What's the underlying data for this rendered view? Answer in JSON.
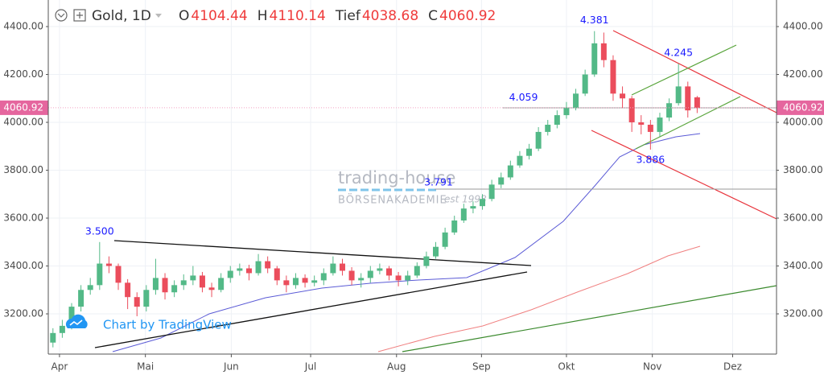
{
  "chart_data": {
    "type": "candlestick",
    "title": "Gold, 1D",
    "ohlc_labels": [
      "O",
      "H",
      "Tief",
      "C"
    ],
    "up_color": "#53b987",
    "down_color": "#eb4d5c",
    "categories": [
      null,
      null,
      null,
      null,
      null,
      null,
      null,
      null,
      null,
      null,
      null,
      null,
      null,
      null,
      null,
      null,
      null,
      null,
      null,
      null,
      null,
      null,
      null,
      null,
      null,
      null,
      null,
      null,
      null,
      null,
      null,
      null,
      null,
      null,
      null,
      null,
      null,
      null,
      null,
      null,
      null,
      null,
      null,
      null,
      null,
      null,
      null,
      null,
      null,
      null,
      null,
      null,
      null,
      null,
      null,
      null,
      null,
      null,
      null,
      null,
      null,
      null,
      null,
      null,
      null,
      null,
      null,
      null,
      null,
      null
    ],
    "open": [
      3080,
      3120,
      3150,
      3230,
      3300,
      3320,
      3410,
      3400,
      3330,
      3270,
      3230,
      3300,
      3350,
      3290,
      3320,
      3340,
      3360,
      3310,
      3300,
      3350,
      3380,
      3390,
      3370,
      3420,
      3390,
      3340,
      3320,
      3350,
      3330,
      3340,
      3370,
      3410,
      3380,
      3340,
      3350,
      3380,
      3390,
      3360,
      3340,
      3360,
      3400,
      3440,
      3480,
      3540,
      3590,
      3640,
      3650,
      3680,
      3740,
      3770,
      3820,
      3860,
      3890,
      3960,
      3990,
      4030,
      4060,
      4120,
      4200,
      4330,
      4260,
      4120,
      4100,
      4000,
      3990,
      3960,
      4020,
      4080,
      4150,
      4104.44
    ],
    "high": [
      3140,
      3175,
      3245,
      3320,
      3350,
      3500,
      3440,
      3410,
      3345,
      3290,
      3320,
      3430,
      3370,
      3340,
      3365,
      3400,
      3375,
      3330,
      3370,
      3400,
      3410,
      3405,
      3450,
      3440,
      3400,
      3360,
      3370,
      3365,
      3360,
      3390,
      3440,
      3430,
      3395,
      3370,
      3400,
      3410,
      3400,
      3375,
      3380,
      3415,
      3460,
      3500,
      3560,
      3610,
      3660,
      3670,
      3700,
      3760,
      3790,
      3840,
      3880,
      3910,
      3980,
      4010,
      4050,
      4085,
      4140,
      4220,
      4381,
      4375,
      4280,
      4150,
      4110,
      4030,
      4010,
      4040,
      4100,
      4245,
      4170,
      4110.14
    ],
    "low": [
      3060,
      3100,
      3135,
      3210,
      3280,
      3300,
      3370,
      3300,
      3220,
      3190,
      3210,
      3280,
      3260,
      3270,
      3300,
      3320,
      3290,
      3270,
      3290,
      3330,
      3360,
      3340,
      3360,
      3370,
      3320,
      3290,
      3305,
      3310,
      3315,
      3320,
      3360,
      3360,
      3320,
      3310,
      3330,
      3365,
      3340,
      3315,
      3320,
      3350,
      3390,
      3430,
      3470,
      3530,
      3580,
      3620,
      3635,
      3670,
      3725,
      3760,
      3810,
      3845,
      3880,
      3945,
      3975,
      4015,
      4050,
      4110,
      4190,
      4230,
      4090,
      4060,
      3960,
      3950,
      3886,
      3940,
      4005,
      4070,
      4020,
      4038.68
    ],
    "close": [
      3120,
      3150,
      3230,
      3300,
      3320,
      3410,
      3400,
      3330,
      3270,
      3230,
      3300,
      3350,
      3290,
      3320,
      3340,
      3360,
      3310,
      3300,
      3350,
      3380,
      3390,
      3370,
      3420,
      3390,
      3340,
      3320,
      3350,
      3330,
      3340,
      3370,
      3410,
      3380,
      3340,
      3350,
      3380,
      3390,
      3360,
      3340,
      3360,
      3400,
      3440,
      3480,
      3540,
      3590,
      3640,
      3650,
      3680,
      3740,
      3770,
      3820,
      3860,
      3890,
      3960,
      3990,
      4030,
      4060,
      4120,
      4200,
      4330,
      4260,
      4120,
      4100,
      4000,
      3990,
      3960,
      4020,
      4080,
      4150,
      4050,
      4060.92
    ],
    "xlim": [
      -0.5,
      77.5
    ],
    "xticks": [
      {
        "value": 0.7,
        "label": "Apr"
      },
      {
        "value": 9.9,
        "label": "Mai"
      },
      {
        "value": 19.1,
        "label": "Jun"
      },
      {
        "value": 27.6,
        "label": "Jul"
      },
      {
        "value": 36.8,
        "label": "Aug"
      },
      {
        "value": 45.9,
        "label": "Sep"
      },
      {
        "value": 55,
        "label": "Okt"
      },
      {
        "value": 64.2,
        "label": "Nov"
      },
      {
        "value": 72.8,
        "label": "Dez"
      }
    ],
    "ylim": [
      3032,
      4511
    ],
    "yticks": [
      {
        "value": 3200,
        "label": "3200.00"
      },
      {
        "value": 3400,
        "label": "3400.00"
      },
      {
        "value": 3600,
        "label": "3600.00"
      },
      {
        "value": 3800,
        "label": "3800.00"
      },
      {
        "value": 4000,
        "label": "4000.00"
      },
      {
        "value": 4200,
        "label": "4200.00"
      },
      {
        "value": 4400,
        "label": "4400.00"
      }
    ],
    "grid": true,
    "annotations": [
      {
        "value": 3500,
        "label": "3.500",
        "at": 5,
        "pos": "above"
      },
      {
        "value": 4381,
        "label": "4.381",
        "at": 58,
        "pos": "above"
      },
      {
        "value": 4245,
        "label": "4.245",
        "at": 67,
        "pos": "above"
      },
      {
        "value": 3886,
        "label": "3.886",
        "at": 64,
        "pos": "below"
      },
      {
        "value": 4059,
        "label": "4.059",
        "at": 50.4,
        "pos": "above"
      },
      {
        "value": 3791,
        "label": "3.791",
        "at": 41.3,
        "pos": "below"
      }
    ],
    "watermark": {
      "brand": "trading-house",
      "sub": "BÖRSENAKADEMIE",
      "est": "est 1998"
    },
    "credit": "Chart by TradingView"
  }
}
